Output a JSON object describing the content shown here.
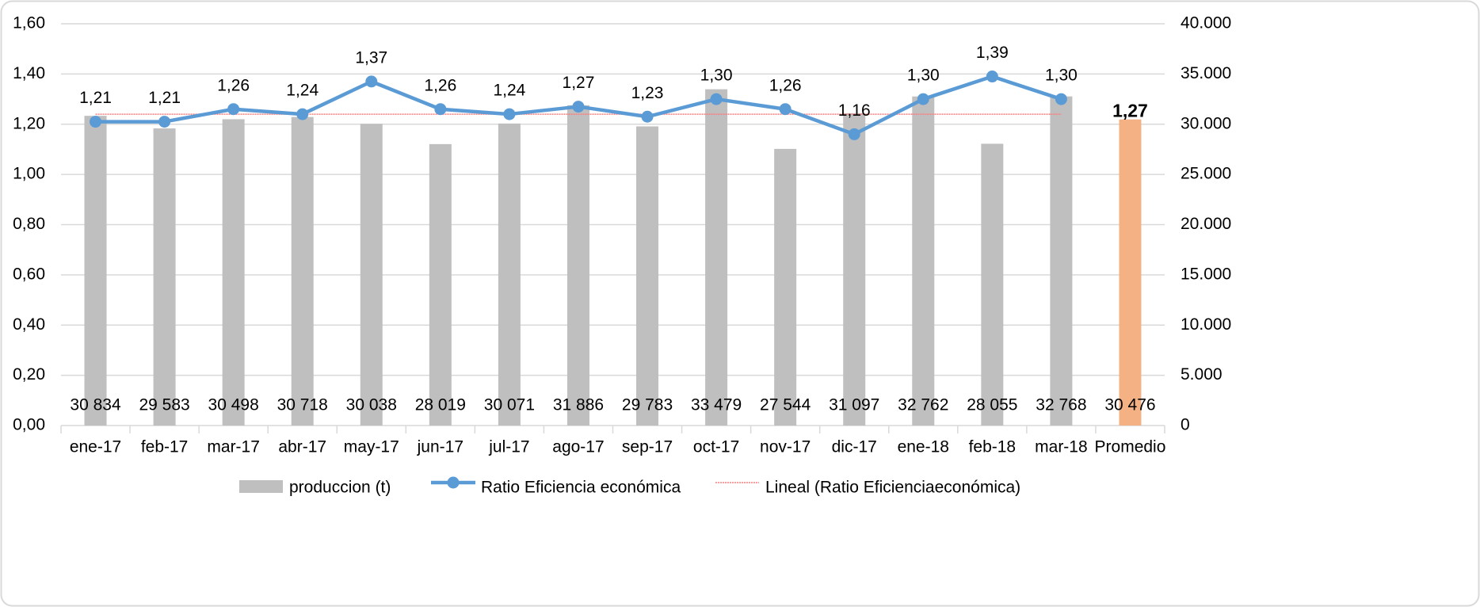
{
  "chart_data": {
    "type": "bar_line",
    "categories": [
      "ene-17",
      "feb-17",
      "mar-17",
      "abr-17",
      "may-17",
      "jun-17",
      "jul-17",
      "ago-17",
      "sep-17",
      "oct-17",
      "nov-17",
      "dic-17",
      "ene-18",
      "feb-18",
      "mar-18",
      "Promedio"
    ],
    "series": [
      {
        "name": "produccion (t)",
        "type": "bar",
        "axis": "y2",
        "color": "#bfbfbf",
        "colors": [
          "#bfbfbf",
          "#bfbfbf",
          "#bfbfbf",
          "#bfbfbf",
          "#bfbfbf",
          "#bfbfbf",
          "#bfbfbf",
          "#bfbfbf",
          "#bfbfbf",
          "#bfbfbf",
          "#bfbfbf",
          "#bfbfbf",
          "#bfbfbf",
          "#bfbfbf",
          "#bfbfbf",
          "#f4b183"
        ],
        "values": [
          30834,
          29583,
          30498,
          30718,
          30038,
          28019,
          30071,
          31886,
          29783,
          33479,
          27544,
          31097,
          32762,
          28055,
          32768,
          30476
        ],
        "value_labels": [
          "30 834",
          "29 583",
          "30 498",
          "30 718",
          "30 038",
          "28 019",
          "30 071",
          "31 886",
          "29 783",
          "33 479",
          "27 544",
          "31 097",
          "32 762",
          "28 055",
          "32 768",
          "30 476"
        ]
      },
      {
        "name": "Ratio Eficiencia económica",
        "type": "line",
        "color": "#5b9bd5",
        "values": [
          1.21,
          1.21,
          1.26,
          1.24,
          1.37,
          1.26,
          1.24,
          1.27,
          1.23,
          1.3,
          1.26,
          1.16,
          1.3,
          1.39,
          1.3,
          null
        ],
        "value_labels": [
          "1,21",
          "1,21",
          "1,26",
          "1,24",
          "1,37",
          "1,26",
          "1,24",
          "1,27",
          "1,23",
          "1,30",
          "1,26",
          "1,16",
          "1,30",
          "1,39",
          "1,30",
          null
        ]
      },
      {
        "name": "Lineal (Ratio Eficienciaeconómica)",
        "type": "trend",
        "color": "#ff7b7b",
        "values": [
          1.24,
          1.24,
          1.24,
          1.24,
          1.24,
          1.24,
          1.24,
          1.24,
          1.24,
          1.24,
          1.24,
          1.24,
          1.24,
          1.24,
          1.24,
          null
        ]
      }
    ],
    "average": {
      "value": 1.27,
      "value_label": "1,27"
    },
    "ylim": [
      0,
      1.6
    ],
    "yticks": [
      {
        "value": 0,
        "label": "0,00"
      },
      {
        "value": 0.2,
        "label": "0,20"
      },
      {
        "value": 0.4,
        "label": "0,40"
      },
      {
        "value": 0.6,
        "label": "0,60"
      },
      {
        "value": 0.8,
        "label": "0,80"
      },
      {
        "value": 1,
        "label": "1,00"
      },
      {
        "value": 1.2,
        "label": "1,20"
      },
      {
        "value": 1.4,
        "label": "1,40"
      },
      {
        "value": 1.6,
        "label": "1,60"
      }
    ],
    "y2lim": [
      0,
      40000
    ],
    "y2ticks": [
      0,
      {
        "value": 5000,
        "label": "5.000"
      },
      {
        "value": 10000,
        "label": "10.000"
      },
      {
        "value": 15000,
        "label": "15.000"
      },
      {
        "value": 20000,
        "label": "20.000"
      },
      {
        "value": 25000,
        "label": "25.000"
      },
      {
        "value": 30000,
        "label": "30.000"
      },
      {
        "value": 35000,
        "label": "35.000"
      },
      {
        "value": 40000,
        "label": "40.000"
      }
    ],
    "grid": true,
    "legend": "bottom"
  }
}
